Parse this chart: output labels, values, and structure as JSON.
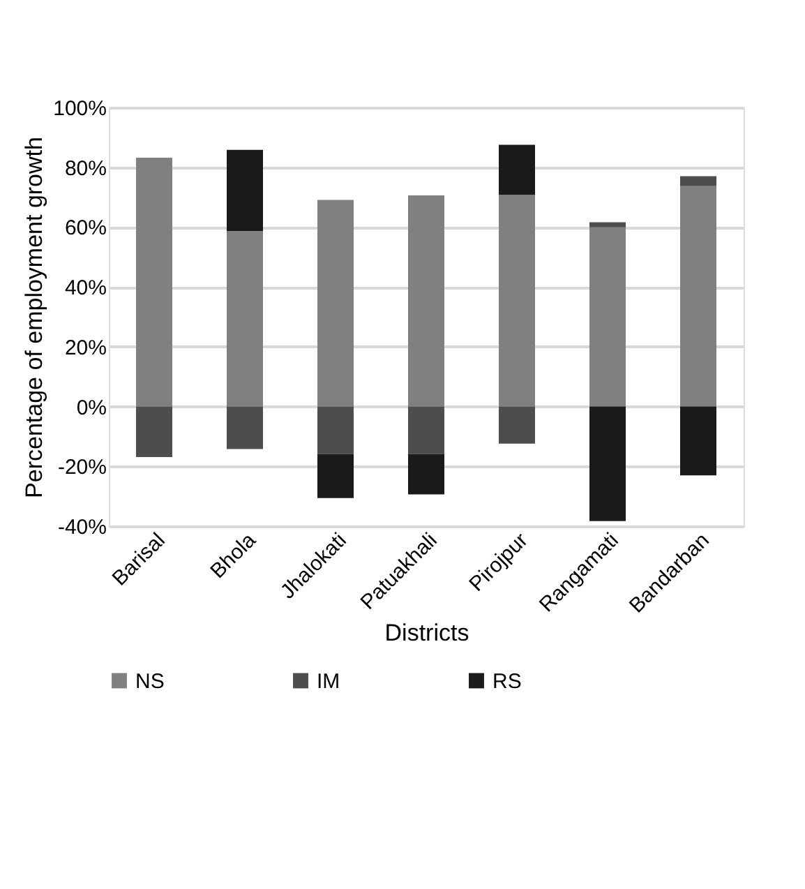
{
  "chart_data": {
    "type": "bar",
    "stacked": true,
    "xlabel": "Districts",
    "ylabel": "Percentage of employment growth",
    "categories": [
      "Barisal",
      "Bhola",
      "Jhalokati",
      "Patuakhali",
      "Pirojpur",
      "Rangamati",
      "Bandarban"
    ],
    "series": [
      {
        "name": "NS",
        "color": "#808080",
        "values": [
          83.2,
          58.7,
          69.1,
          70.6,
          70.8,
          59.9,
          73.7
        ]
      },
      {
        "name": "IM",
        "color": "#4d4d4d",
        "values": [
          -16.9,
          -14.2,
          -15.9,
          -15.9,
          -12.4,
          1.7,
          3.3
        ]
      },
      {
        "name": "RS",
        "color": "#1a1a1a",
        "values": [
          null,
          27.1,
          -14.7,
          -13.5,
          16.7,
          -38.3,
          -23.0
        ]
      }
    ],
    "ylim": [
      -40,
      100
    ],
    "yticks": [
      {
        "value": -40,
        "label": "-40%"
      },
      {
        "value": -20,
        "label": "-20%"
      },
      {
        "value": 0,
        "label": "0%"
      },
      {
        "value": 20,
        "label": "20%"
      },
      {
        "value": 40,
        "label": "40%"
      },
      {
        "value": 60,
        "label": "60%"
      },
      {
        "value": 80,
        "label": "80%"
      },
      {
        "value": 100,
        "label": "100%"
      }
    ],
    "grid": "y",
    "legend": "bottom"
  }
}
